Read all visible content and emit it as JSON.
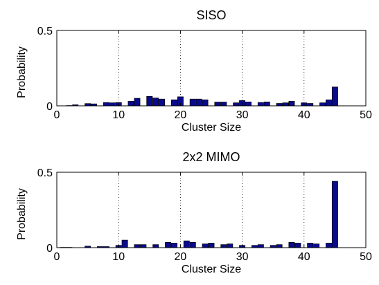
{
  "chart_data": [
    {
      "type": "bar",
      "title": "SISO",
      "xlabel": "Cluster Size",
      "ylabel": "Probability",
      "xlim": [
        0,
        50
      ],
      "ylim": [
        0,
        0.5
      ],
      "xticks": [
        0,
        10,
        20,
        30,
        40,
        50
      ],
      "yticks": [
        0,
        0.5
      ],
      "xtick_labels": [
        "0",
        "10",
        "20",
        "30",
        "40",
        "50"
      ],
      "ytick_labels": [
        "0",
        "0.5"
      ],
      "grid": "vertical dotted",
      "bar_color": "#0a0a8c",
      "x": [
        2,
        3,
        5,
        6,
        8,
        9,
        10,
        12,
        13,
        15,
        16,
        17,
        19,
        20,
        22,
        23,
        24,
        26,
        27,
        29,
        30,
        31,
        33,
        34,
        36,
        37,
        38,
        40,
        41,
        43,
        44,
        45
      ],
      "values": [
        0.002,
        0.007,
        0.015,
        0.013,
        0.022,
        0.02,
        0.022,
        0.03,
        0.05,
        0.063,
        0.052,
        0.045,
        0.04,
        0.06,
        0.045,
        0.045,
        0.04,
        0.025,
        0.025,
        0.02,
        0.035,
        0.026,
        0.022,
        0.026,
        0.016,
        0.02,
        0.03,
        0.02,
        0.016,
        0.02,
        0.04,
        0.125
      ]
    },
    {
      "type": "bar",
      "title": "2x2 MIMO",
      "xlabel": "Cluster Size",
      "ylabel": "Probability",
      "xlim": [
        0,
        50
      ],
      "ylim": [
        0,
        0.5
      ],
      "xticks": [
        0,
        10,
        20,
        30,
        40,
        50
      ],
      "yticks": [
        0,
        0.5
      ],
      "xtick_labels": [
        "0",
        "10",
        "20",
        "30",
        "40",
        "50"
      ],
      "ytick_labels": [
        "0",
        "0.5"
      ],
      "grid": "vertical dotted",
      "bar_color": "#0a0a8c",
      "x": [
        1,
        2,
        5,
        7,
        8,
        10,
        11,
        13,
        14,
        16,
        18,
        19,
        21,
        22,
        24,
        25,
        27,
        28,
        30,
        32,
        33,
        35,
        36,
        38,
        39,
        41,
        42,
        44,
        45
      ],
      "values": [
        0.002,
        0.002,
        0.01,
        0.007,
        0.007,
        0.015,
        0.05,
        0.02,
        0.02,
        0.02,
        0.035,
        0.03,
        0.045,
        0.035,
        0.025,
        0.03,
        0.02,
        0.025,
        0.015,
        0.015,
        0.02,
        0.015,
        0.02,
        0.035,
        0.03,
        0.03,
        0.025,
        0.03,
        0.44
      ]
    }
  ]
}
